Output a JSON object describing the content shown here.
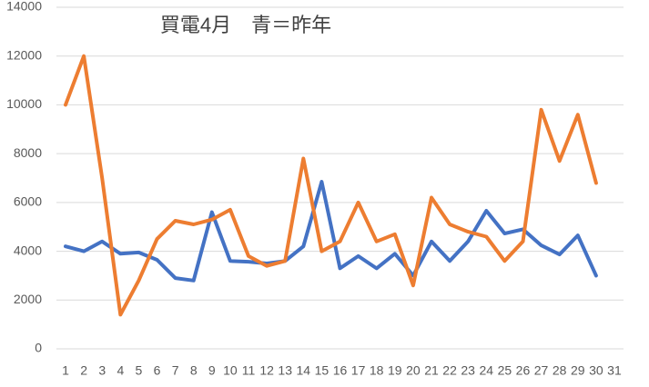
{
  "chart_data": {
    "type": "line",
    "title": "買電4月　青＝昨年",
    "categories": [
      1,
      2,
      3,
      4,
      5,
      6,
      7,
      8,
      9,
      10,
      11,
      12,
      13,
      14,
      15,
      16,
      17,
      18,
      19,
      20,
      21,
      22,
      23,
      24,
      25,
      26,
      27,
      28,
      29,
      30,
      31
    ],
    "series": [
      {
        "color": "#4472c4",
        "values": [
          4200,
          4000,
          4400,
          3900,
          3950,
          3650,
          2900,
          2800,
          5600,
          3600,
          3570,
          3500,
          3600,
          4200,
          6850,
          3300,
          3800,
          3300,
          3900,
          3000,
          4400,
          3600,
          4400,
          5660,
          4730,
          4900,
          4240,
          3870,
          4650,
          3000,
          null
        ]
      },
      {
        "color": "#ed7d31",
        "values": [
          10000,
          12000,
          7000,
          1400,
          2800,
          4500,
          5250,
          5100,
          5300,
          5700,
          3800,
          3400,
          3600,
          7800,
          4000,
          4400,
          6000,
          4400,
          4700,
          2600,
          6200,
          5100,
          4800,
          4600,
          3600,
          4400,
          9800,
          7700,
          9600,
          6800,
          null
        ]
      }
    ],
    "ylim": [
      0,
      14000
    ],
    "yticks": [
      0,
      2000,
      4000,
      6000,
      8000,
      10000,
      12000,
      14000
    ],
    "grid": true
  }
}
